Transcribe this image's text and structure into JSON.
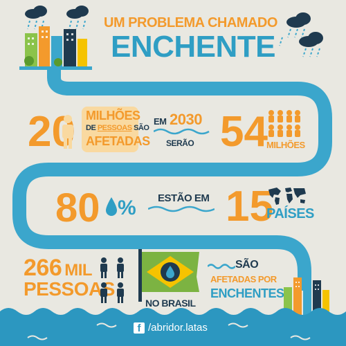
{
  "title": {
    "line1_a": "UM PROBLEMA",
    "line1_b": "CHAMADO",
    "line2": "ENCHENTE"
  },
  "stat1": {
    "number": "20",
    "milhoes": "MILHÕES",
    "de": "DE",
    "pessoas": "PESSOAS",
    "sao": "SÃO",
    "afetadas": "AFETADAS"
  },
  "stat2": {
    "em": "EM",
    "year": "2030",
    "serao": "SERÃO",
    "number": "54",
    "milhoes": "MILHÕES"
  },
  "stat3": {
    "percent": "80",
    "percent_sign": "%",
    "estao_em": "ESTÃO EM",
    "number": "15",
    "paises": "PAÍSES"
  },
  "stat4": {
    "number": "266",
    "mil": "MIL",
    "pessoas": "PESSOAS",
    "no_brasil": "NO BRASIL",
    "sao": "SÃO",
    "afetadas_por": "AFETADAS POR",
    "enchentes": "ENCHENTES"
  },
  "footer": {
    "facebook_icon": "facebook-icon",
    "handle": "/abridor.latas"
  },
  "colors": {
    "background": "#e9e8e1",
    "river": "#3ba6cc",
    "orange": "#f39a2c",
    "navy": "#1f3a4f",
    "highlight": "#f9d9a0",
    "brazil_green": "#7cb342",
    "brazil_yellow": "#f5c300",
    "water": "#2c97c0"
  }
}
